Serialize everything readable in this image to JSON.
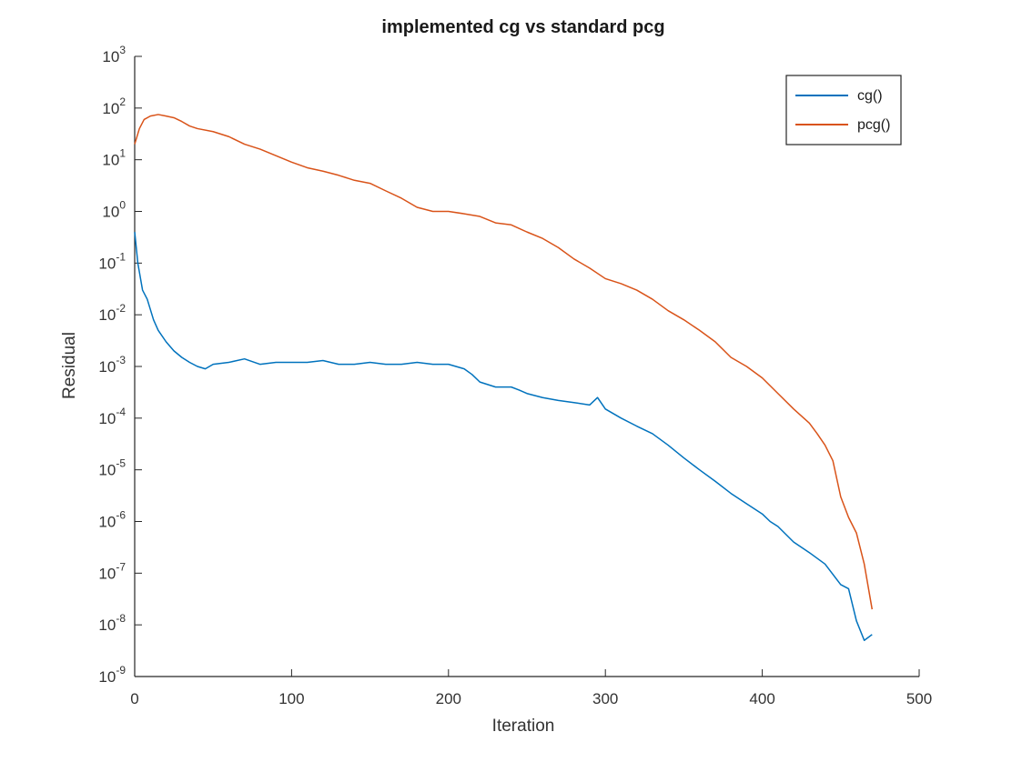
{
  "chart_data": {
    "type": "line",
    "title": "implemented cg vs standard pcg",
    "xlabel": "Iteration",
    "ylabel": "Residual",
    "xlim": [
      0,
      500
    ],
    "ylim": [
      1e-09,
      1000
    ],
    "yscale": "log",
    "grid": false,
    "legend_position": "top-right",
    "x_ticks": [
      0,
      100,
      200,
      300,
      400,
      500
    ],
    "y_ticks": [
      {
        "base": "10",
        "exp": "-9"
      },
      {
        "base": "10",
        "exp": "-8"
      },
      {
        "base": "10",
        "exp": "-7"
      },
      {
        "base": "10",
        "exp": "-6"
      },
      {
        "base": "10",
        "exp": "-5"
      },
      {
        "base": "10",
        "exp": "-4"
      },
      {
        "base": "10",
        "exp": "-3"
      },
      {
        "base": "10",
        "exp": "-2"
      },
      {
        "base": "10",
        "exp": "-1"
      },
      {
        "base": "10",
        "exp": "0"
      },
      {
        "base": "10",
        "exp": "1"
      },
      {
        "base": "10",
        "exp": "2"
      },
      {
        "base": "10",
        "exp": "3"
      }
    ],
    "series": [
      {
        "name": "cg()",
        "color": "#0072BD",
        "x": [
          0,
          2,
          5,
          8,
          12,
          15,
          20,
          25,
          30,
          35,
          40,
          45,
          50,
          60,
          70,
          80,
          90,
          100,
          110,
          120,
          130,
          140,
          150,
          160,
          170,
          180,
          190,
          200,
          210,
          215,
          220,
          230,
          240,
          245,
          250,
          260,
          270,
          280,
          290,
          295,
          300,
          310,
          320,
          330,
          340,
          350,
          360,
          370,
          380,
          390,
          400,
          405,
          410,
          420,
          430,
          440,
          450,
          455,
          460,
          465,
          470
        ],
        "y": [
          0.4,
          0.1,
          0.03,
          0.02,
          0.008,
          0.005,
          0.003,
          0.002,
          0.0015,
          0.0012,
          0.001,
          0.0009,
          0.0011,
          0.0012,
          0.0014,
          0.0011,
          0.0012,
          0.0012,
          0.0012,
          0.0013,
          0.0011,
          0.0011,
          0.0012,
          0.0011,
          0.0011,
          0.0012,
          0.0011,
          0.0011,
          0.0009,
          0.0007,
          0.0005,
          0.0004,
          0.0004,
          0.00035,
          0.0003,
          0.00025,
          0.00022,
          0.0002,
          0.00018,
          0.00025,
          0.00015,
          0.0001,
          7e-05,
          5e-05,
          3e-05,
          1.7e-05,
          1e-05,
          6e-06,
          3.5e-06,
          2.2e-06,
          1.4e-06,
          1e-06,
          8e-07,
          4e-07,
          2.5e-07,
          1.5e-07,
          6e-08,
          5e-08,
          1.2e-08,
          5e-09,
          6.5e-09
        ]
      },
      {
        "name": "pcg()",
        "color": "#D95319",
        "x": [
          0,
          3,
          6,
          10,
          15,
          20,
          25,
          30,
          35,
          40,
          50,
          60,
          70,
          80,
          90,
          100,
          110,
          120,
          130,
          140,
          150,
          160,
          170,
          180,
          190,
          200,
          210,
          220,
          230,
          240,
          250,
          260,
          270,
          280,
          290,
          300,
          310,
          320,
          330,
          340,
          350,
          360,
          370,
          380,
          390,
          400,
          410,
          420,
          430,
          435,
          440,
          445,
          450,
          455,
          460,
          465,
          470
        ],
        "y": [
          20,
          40,
          60,
          70,
          75,
          70,
          65,
          55,
          45,
          40,
          35,
          28,
          20,
          16,
          12,
          9,
          7,
          6,
          5,
          4,
          3.5,
          2.5,
          1.8,
          1.2,
          1.0,
          1.0,
          0.9,
          0.8,
          0.6,
          0.55,
          0.4,
          0.3,
          0.2,
          0.12,
          0.08,
          0.05,
          0.04,
          0.03,
          0.02,
          0.012,
          0.008,
          0.005,
          0.003,
          0.0015,
          0.001,
          0.0006,
          0.0003,
          0.00015,
          8e-05,
          5e-05,
          3e-05,
          1.5e-05,
          3e-06,
          1.2e-06,
          6e-07,
          1.5e-07,
          2e-08
        ]
      }
    ]
  }
}
